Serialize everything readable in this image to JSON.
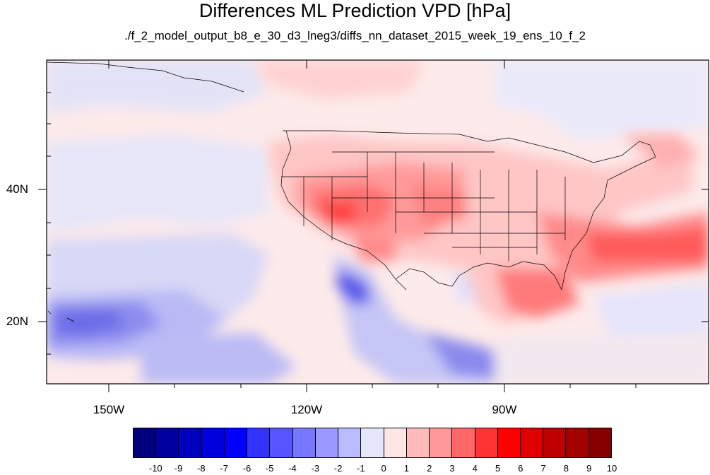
{
  "title": "Differences ML Prediction VPD [hPa]",
  "subtitle": "./f_2_model_output_b8_e_30_d3_lneg3/diffs_nn_dataset_2015_week_19_ens_10_f_2",
  "map": {
    "lon_labels": [
      "150W",
      "120W",
      "90W"
    ],
    "lat_labels": [
      "40N",
      "20N"
    ]
  },
  "colorbar": {
    "colors": [
      "#00007f",
      "#00009f",
      "#0000bf",
      "#0000df",
      "#0000ff",
      "#3333ff",
      "#5555ff",
      "#7777ff",
      "#9999ff",
      "#bbbbff",
      "#e6e6fa",
      "#ffe6e6",
      "#ffbbbb",
      "#ff9999",
      "#ff6666",
      "#ff3333",
      "#ff0000",
      "#df0000",
      "#bf0000",
      "#a30000",
      "#870000"
    ],
    "labels": [
      "-10",
      "-9",
      "-8",
      "-7",
      "-6",
      "-5",
      "-4",
      "-3",
      "-2",
      "-1",
      "0",
      "1",
      "2",
      "3",
      "4",
      "5",
      "6",
      "7",
      "8",
      "9",
      "10"
    ]
  }
}
